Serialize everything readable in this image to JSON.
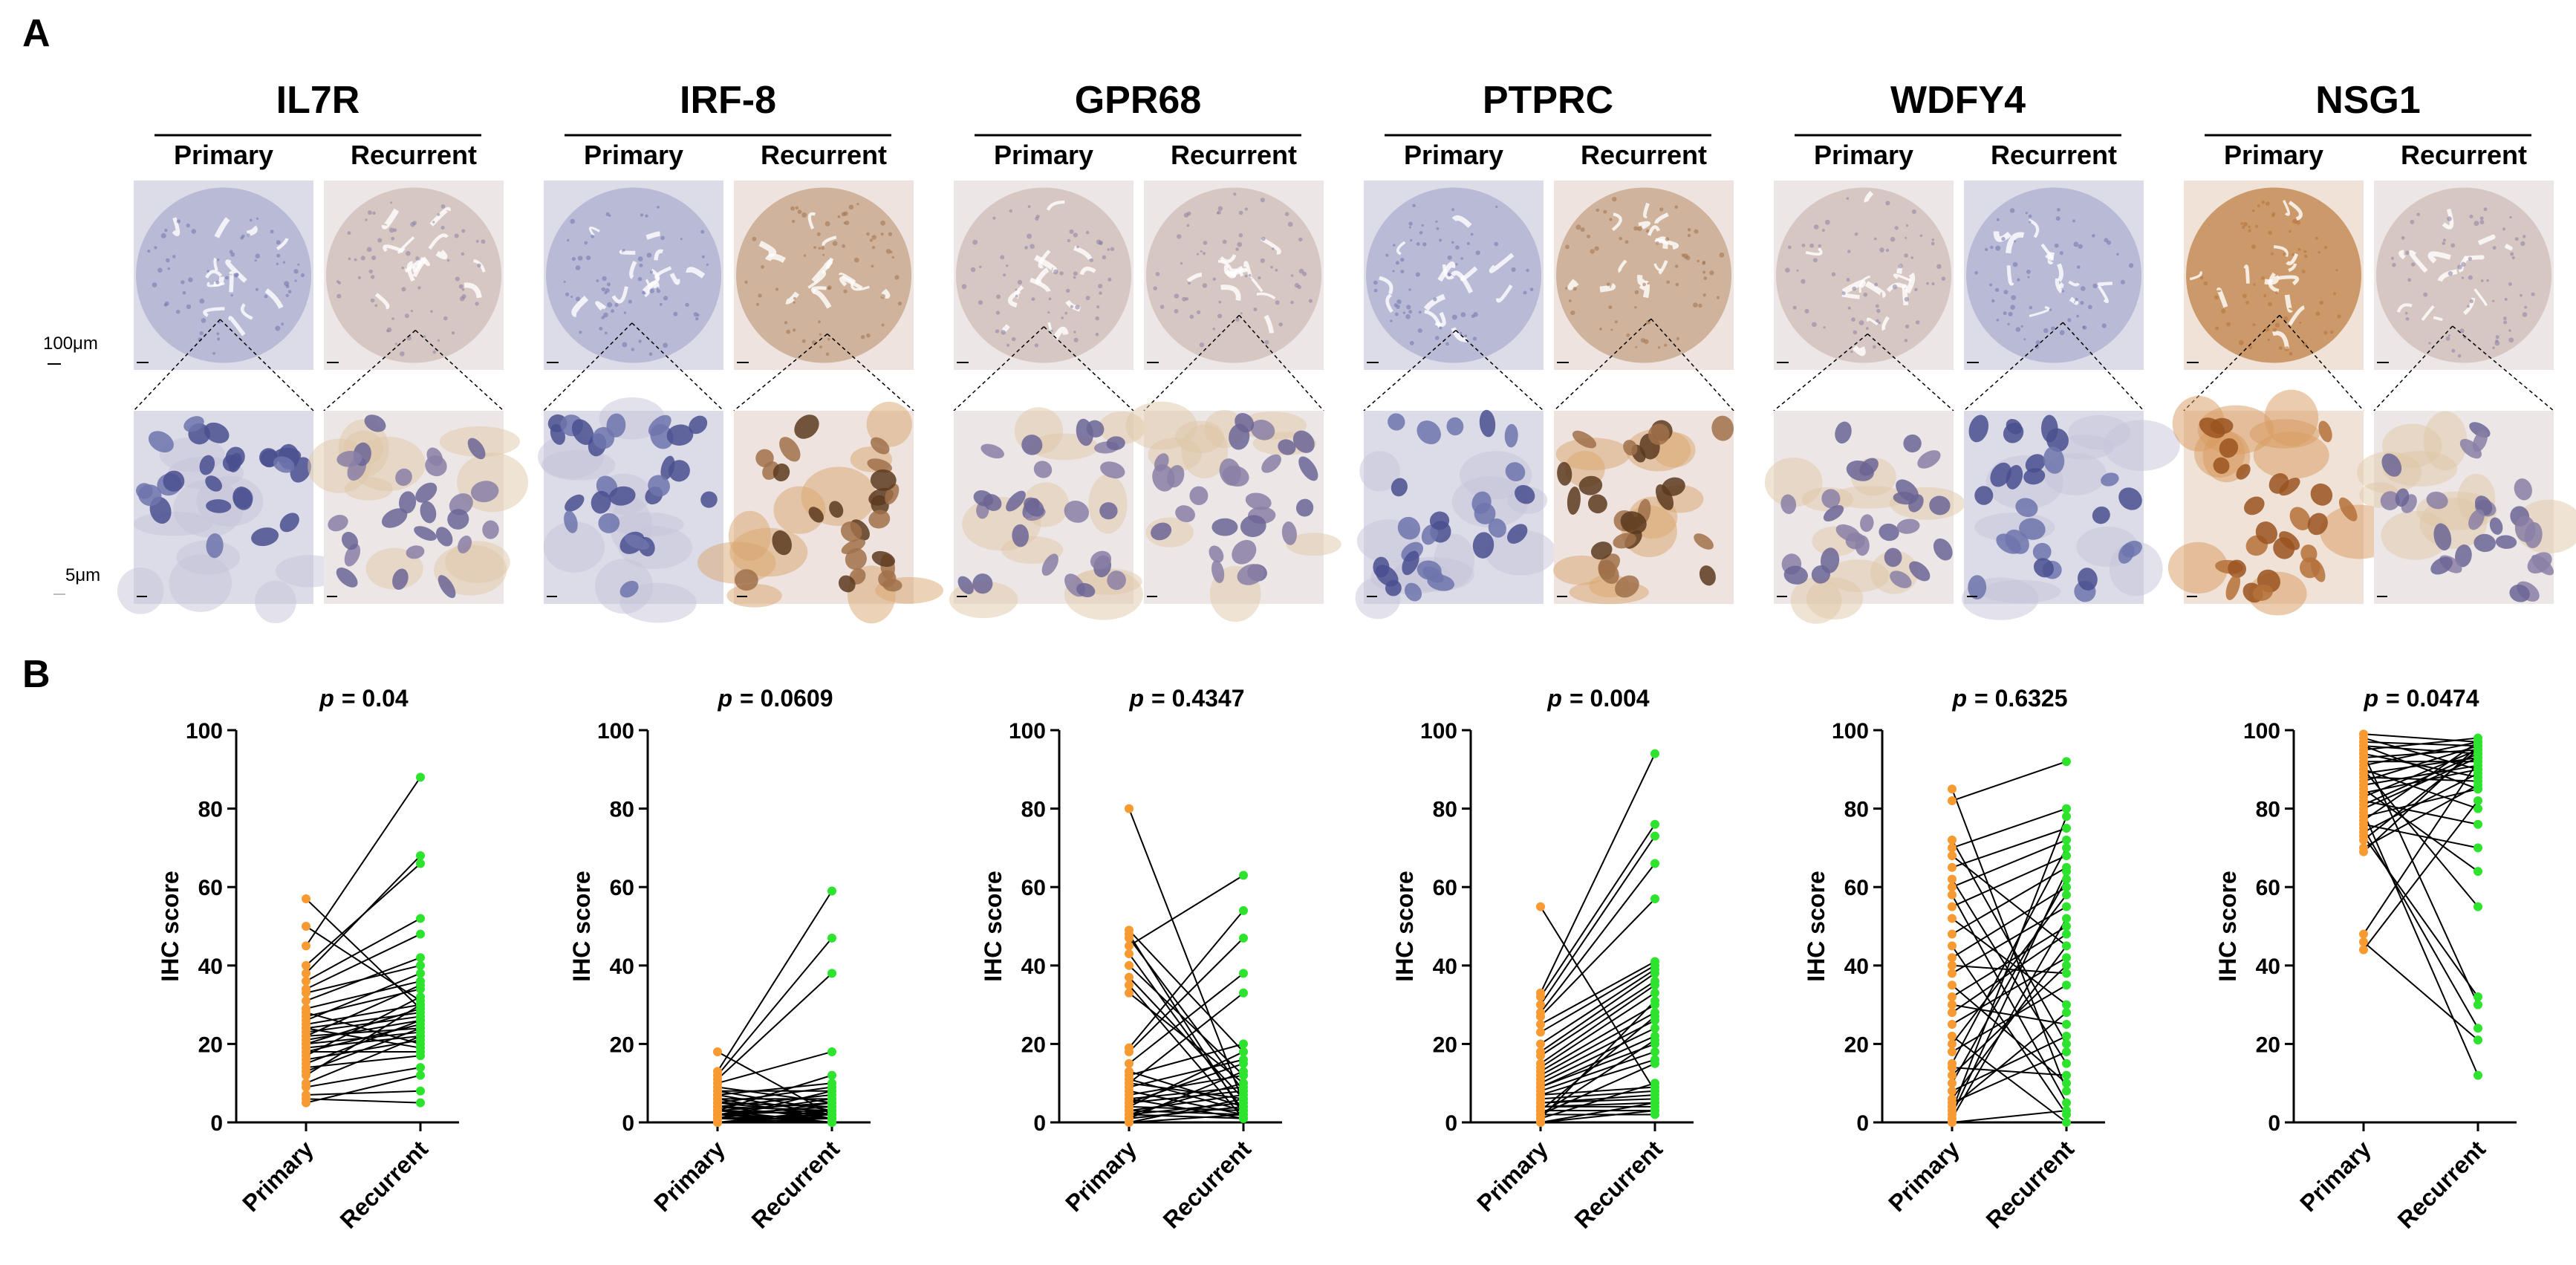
{
  "panels": {
    "a_label": "A",
    "b_label": "B"
  },
  "scale_bars": {
    "top_row": "100μm",
    "bottom_row": "5μm"
  },
  "group_labels": [
    "Primary",
    "Recurrent"
  ],
  "colors": {
    "primary": "#F79A32",
    "recurrent": "#2EE32E",
    "line": "#000000"
  },
  "markers": [
    {
      "gene": "IL7R",
      "stain_primary": "blue",
      "stain_recurrent": "light-brown"
    },
    {
      "gene": "IRF-8",
      "stain_primary": "blue",
      "stain_recurrent": "brown"
    },
    {
      "gene": "GPR68",
      "stain_primary": "light-brown",
      "stain_recurrent": "light-brown"
    },
    {
      "gene": "PTPRC",
      "stain_primary": "blue",
      "stain_recurrent": "brown"
    },
    {
      "gene": "WDFY4",
      "stain_primary": "light-brown",
      "stain_recurrent": "blue"
    },
    {
      "gene": "NSG1",
      "stain_primary": "dark-brown",
      "stain_recurrent": "light-brown"
    }
  ],
  "chart_data": [
    {
      "type": "scatter",
      "p_prefix": "p",
      "p_value": "= 0.04",
      "ylabel": "IHC score",
      "ylim": [
        0,
        100
      ],
      "yticks": [
        "0",
        "20",
        "40",
        "60",
        "80",
        "100"
      ],
      "categories": [
        "Primary",
        "Recurrent"
      ],
      "pairs": [
        [
          57,
          29
        ],
        [
          50,
          31
        ],
        [
          45,
          88
        ],
        [
          40,
          66
        ],
        [
          38,
          68
        ],
        [
          36,
          52
        ],
        [
          34,
          48
        ],
        [
          33,
          40
        ],
        [
          31,
          42
        ],
        [
          29,
          36
        ],
        [
          28,
          20
        ],
        [
          27,
          34
        ],
        [
          26,
          38
        ],
        [
          25,
          30
        ],
        [
          24,
          28
        ],
        [
          24,
          19
        ],
        [
          23,
          27
        ],
        [
          22,
          35
        ],
        [
          22,
          24
        ],
        [
          21,
          26
        ],
        [
          20,
          23
        ],
        [
          20,
          29
        ],
        [
          19,
          22
        ],
        [
          18,
          25
        ],
        [
          18,
          18
        ],
        [
          17,
          32
        ],
        [
          16,
          21
        ],
        [
          15,
          26
        ],
        [
          14,
          17
        ],
        [
          13,
          24
        ],
        [
          12,
          30
        ],
        [
          10,
          22
        ],
        [
          9,
          14
        ],
        [
          7,
          8
        ],
        [
          6,
          5
        ],
        [
          5,
          12
        ]
      ]
    },
    {
      "type": "scatter",
      "p_prefix": "p",
      "p_value": "= 0.0609",
      "ylabel": "IHC score",
      "ylim": [
        0,
        100
      ],
      "yticks": [
        "0",
        "20",
        "40",
        "60",
        "80",
        "100"
      ],
      "categories": [
        "Primary",
        "Recurrent"
      ],
      "pairs": [
        [
          18,
          2
        ],
        [
          13,
          59
        ],
        [
          12,
          47
        ],
        [
          11,
          38
        ],
        [
          10,
          18
        ],
        [
          9,
          5
        ],
        [
          8,
          8
        ],
        [
          8,
          3
        ],
        [
          7,
          10
        ],
        [
          7,
          2
        ],
        [
          6,
          6
        ],
        [
          6,
          1
        ],
        [
          5,
          4
        ],
        [
          5,
          9
        ],
        [
          5,
          2
        ],
        [
          4,
          3
        ],
        [
          4,
          7
        ],
        [
          4,
          1
        ],
        [
          3,
          5
        ],
        [
          3,
          2
        ],
        [
          3,
          12
        ],
        [
          3,
          0
        ],
        [
          2,
          4
        ],
        [
          2,
          1
        ],
        [
          2,
          6
        ],
        [
          2,
          3
        ],
        [
          2,
          0
        ],
        [
          1,
          2
        ],
        [
          1,
          5
        ],
        [
          1,
          1
        ],
        [
          1,
          8
        ],
        [
          1,
          0
        ],
        [
          0,
          3
        ],
        [
          0,
          1
        ],
        [
          0,
          2
        ],
        [
          0,
          0
        ]
      ]
    },
    {
      "type": "scatter",
      "p_prefix": "p",
      "p_value": "= 0.4347",
      "ylabel": "IHC score",
      "ylim": [
        0,
        100
      ],
      "yticks": [
        "0",
        "20",
        "40",
        "60",
        "80",
        "100"
      ],
      "categories": [
        "Primary",
        "Recurrent"
      ],
      "pairs": [
        [
          80,
          5
        ],
        [
          49,
          18
        ],
        [
          48,
          2
        ],
        [
          47,
          8
        ],
        [
          45,
          63
        ],
        [
          43,
          3
        ],
        [
          40,
          12
        ],
        [
          37,
          6
        ],
        [
          35,
          1
        ],
        [
          33,
          10
        ],
        [
          19,
          54
        ],
        [
          18,
          47
        ],
        [
          15,
          38
        ],
        [
          13,
          4
        ],
        [
          12,
          20
        ],
        [
          11,
          3
        ],
        [
          10,
          33
        ],
        [
          10,
          6
        ],
        [
          9,
          16
        ],
        [
          8,
          2
        ],
        [
          7,
          12
        ],
        [
          6,
          9
        ],
        [
          6,
          1
        ],
        [
          5,
          8
        ],
        [
          5,
          15
        ],
        [
          4,
          3
        ],
        [
          4,
          18
        ],
        [
          3,
          7
        ],
        [
          3,
          2
        ],
        [
          2,
          10
        ],
        [
          2,
          5
        ],
        [
          2,
          1
        ],
        [
          1,
          4
        ],
        [
          1,
          13
        ],
        [
          0,
          2
        ],
        [
          0,
          6
        ]
      ]
    },
    {
      "type": "scatter",
      "p_prefix": "p",
      "p_value": "= 0.004",
      "ylabel": "IHC score",
      "ylim": [
        0,
        100
      ],
      "yticks": [
        "0",
        "20",
        "40",
        "60",
        "80",
        "100"
      ],
      "categories": [
        "Primary",
        "Recurrent"
      ],
      "pairs": [
        [
          55,
          8
        ],
        [
          33,
          94
        ],
        [
          32,
          76
        ],
        [
          30,
          73
        ],
        [
          28,
          66
        ],
        [
          27,
          57
        ],
        [
          25,
          41
        ],
        [
          23,
          40
        ],
        [
          20,
          39
        ],
        [
          18,
          38
        ],
        [
          17,
          36
        ],
        [
          15,
          35
        ],
        [
          14,
          33
        ],
        [
          13,
          30
        ],
        [
          12,
          28
        ],
        [
          11,
          26
        ],
        [
          10,
          24
        ],
        [
          9,
          22
        ],
        [
          9,
          20
        ],
        [
          8,
          18
        ],
        [
          7,
          16
        ],
        [
          7,
          9
        ],
        [
          6,
          8
        ],
        [
          5,
          7
        ],
        [
          5,
          6
        ],
        [
          4,
          5
        ],
        [
          4,
          4
        ],
        [
          3,
          3
        ],
        [
          3,
          27
        ],
        [
          2,
          21
        ],
        [
          2,
          15
        ],
        [
          2,
          2
        ],
        [
          1,
          10
        ],
        [
          1,
          31
        ],
        [
          0,
          5
        ],
        [
          0,
          3
        ]
      ]
    },
    {
      "type": "scatter",
      "p_prefix": "p",
      "p_value": "= 0.6325",
      "ylabel": "IHC score",
      "ylim": [
        0,
        100
      ],
      "yticks": [
        "0",
        "20",
        "40",
        "60",
        "80",
        "100"
      ],
      "categories": [
        "Primary",
        "Recurrent"
      ],
      "pairs": [
        [
          85,
          8
        ],
        [
          82,
          92
        ],
        [
          72,
          20
        ],
        [
          70,
          80
        ],
        [
          68,
          45
        ],
        [
          65,
          75
        ],
        [
          62,
          15
        ],
        [
          60,
          72
        ],
        [
          58,
          5
        ],
        [
          55,
          68
        ],
        [
          52,
          30
        ],
        [
          48,
          65
        ],
        [
          45,
          2
        ],
        [
          42,
          60
        ],
        [
          40,
          38
        ],
        [
          38,
          55
        ],
        [
          35,
          10
        ],
        [
          32,
          50
        ],
        [
          30,
          25
        ],
        [
          28,
          48
        ],
        [
          25,
          42
        ],
        [
          22,
          0
        ],
        [
          20,
          58
        ],
        [
          18,
          35
        ],
        [
          15,
          70
        ],
        [
          14,
          12
        ],
        [
          12,
          40
        ],
        [
          10,
          62
        ],
        [
          8,
          22
        ],
        [
          6,
          45
        ],
        [
          5,
          18
        ],
        [
          4,
          28
        ],
        [
          3,
          78
        ],
        [
          2,
          64
        ],
        [
          1,
          52
        ],
        [
          0,
          3
        ]
      ]
    },
    {
      "type": "scatter",
      "p_prefix": "p",
      "p_value": "= 0.0474",
      "ylabel": "IHC score",
      "ylim": [
        0,
        100
      ],
      "yticks": [
        "0",
        "20",
        "40",
        "60",
        "80",
        "100"
      ],
      "categories": [
        "Primary",
        "Recurrent"
      ],
      "pairs": [
        [
          99,
          97
        ],
        [
          98,
          90
        ],
        [
          97,
          96
        ],
        [
          96,
          85
        ],
        [
          96,
          94
        ],
        [
          95,
          98
        ],
        [
          94,
          88
        ],
        [
          94,
          30
        ],
        [
          93,
          95
        ],
        [
          92,
          92
        ],
        [
          91,
          97
        ],
        [
          90,
          80
        ],
        [
          90,
          55
        ],
        [
          89,
          93
        ],
        [
          88,
          87
        ],
        [
          87,
          96
        ],
        [
          86,
          91
        ],
        [
          85,
          64
        ],
        [
          84,
          90
        ],
        [
          83,
          95
        ],
        [
          82,
          76
        ],
        [
          81,
          94
        ],
        [
          80,
          93
        ],
        [
          79,
          12
        ],
        [
          78,
          85
        ],
        [
          77,
          97
        ],
        [
          76,
          70
        ],
        [
          75,
          24
        ],
        [
          74,
          89
        ],
        [
          73,
          32
        ],
        [
          72,
          95
        ],
        [
          70,
          86
        ],
        [
          69,
          96
        ],
        [
          48,
          92
        ],
        [
          46,
          21
        ],
        [
          44,
          82
        ]
      ]
    }
  ]
}
